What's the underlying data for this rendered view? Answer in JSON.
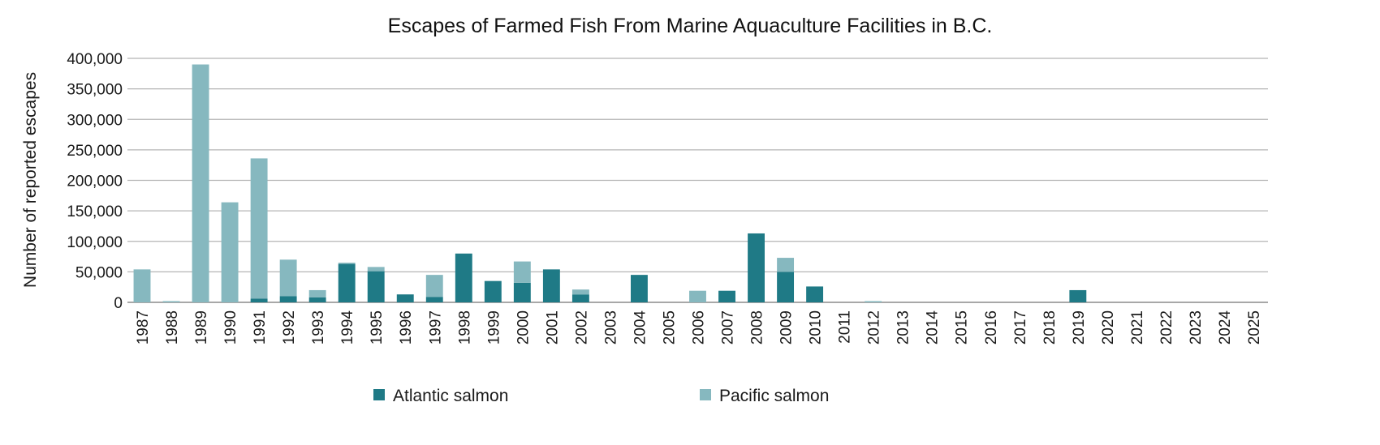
{
  "chart_data": {
    "type": "bar",
    "stacked": true,
    "title": "Escapes of Farmed Fish From Marine Aquaculture Facilities in B.C.",
    "xlabel": "",
    "ylabel": "Number of reported escapes",
    "ylim": [
      0,
      400000
    ],
    "yticks": [
      0,
      50000,
      100000,
      150000,
      200000,
      250000,
      300000,
      350000,
      400000
    ],
    "ytick_labels": [
      "0",
      "50,000",
      "100,000",
      "150,000",
      "200,000",
      "250,000",
      "300,000",
      "350,000",
      "400,000"
    ],
    "grid": true,
    "legend_position": "bottom",
    "categories": [
      "1987",
      "1988",
      "1989",
      "1990",
      "1991",
      "1992",
      "1993",
      "1994",
      "1995",
      "1996",
      "1997",
      "1998",
      "1999",
      "2000",
      "2001",
      "2002",
      "2003",
      "2004",
      "2005",
      "2006",
      "2007",
      "2008",
      "2009",
      "2010",
      "2011",
      "2012",
      "2013",
      "2014",
      "2015",
      "2016",
      "2017",
      "2018",
      "2019",
      "2020",
      "2021",
      "2022",
      "2023",
      "2024",
      "2025"
    ],
    "series": [
      {
        "name": "Atlantic salmon",
        "color": "#1f7a86",
        "values": [
          0,
          0,
          0,
          0,
          6000,
          10000,
          8000,
          63000,
          51000,
          13000,
          9000,
          80000,
          35000,
          32000,
          54000,
          13000,
          0,
          45000,
          0,
          0,
          19000,
          113000,
          50000,
          26000,
          0,
          0,
          0,
          0,
          0,
          0,
          0,
          0,
          20000,
          0,
          0,
          0,
          0,
          0,
          0
        ]
      },
      {
        "name": "Pacific salmon",
        "color": "#86b8bf",
        "values": [
          54000,
          2000,
          390000,
          164000,
          230000,
          60000,
          12000,
          2000,
          7000,
          0,
          36000,
          0,
          0,
          35000,
          0,
          8000,
          0,
          0,
          0,
          19000,
          0,
          0,
          23000,
          0,
          0,
          2000,
          0,
          0,
          0,
          0,
          0,
          0,
          0,
          0,
          0,
          0,
          0,
          0,
          0
        ]
      }
    ]
  }
}
